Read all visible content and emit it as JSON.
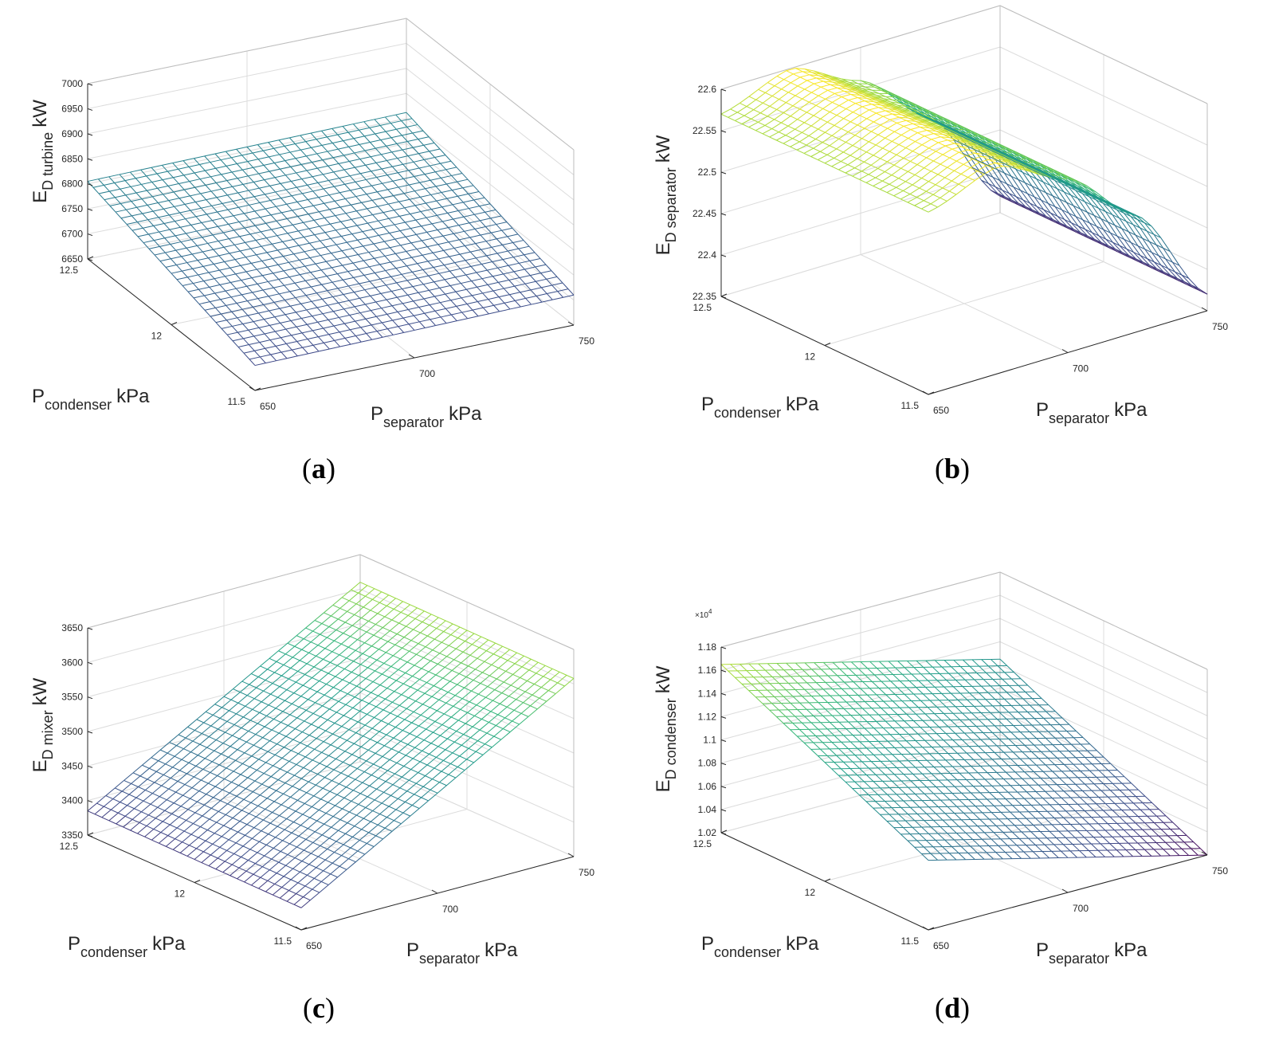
{
  "chart_data": [
    {
      "id": "a",
      "type": "surface",
      "caption": "a",
      "ylabel_main": "E",
      "ylabel_sub": "D turbine",
      "ylabel_unit": "kW",
      "x1label_main": "P",
      "x1label_sub": "condenser",
      "x1label_unit": "kPa",
      "x2label_main": "P",
      "x2label_sub": "separator",
      "x2label_unit": "kPa",
      "condenser_ticks": [
        "12.5",
        "12",
        "11.5"
      ],
      "separator_ticks": [
        "650",
        "700",
        "750"
      ],
      "z_ticks": [
        "6650",
        "6700",
        "6750",
        "6800",
        "6850",
        "6900",
        "6950",
        "7000"
      ],
      "z_multiplier": "",
      "condenser_range": [
        11.5,
        12.5
      ],
      "separator_range": [
        650,
        750
      ],
      "zlim": [
        6650,
        7000
      ],
      "surface_corners": {
        "cond_12.5_sep_650": 6805,
        "cond_12.5_sep_750": 6812,
        "cond_11.5_sep_650": 6700,
        "cond_11.5_sep_750": 6710
      }
    },
    {
      "id": "b",
      "type": "surface",
      "caption": "b",
      "ylabel_main": "E",
      "ylabel_sub": "D separator",
      "ylabel_unit": "kW",
      "x1label_main": "P",
      "x1label_sub": "condenser",
      "x1label_unit": "kPa",
      "x2label_main": "P",
      "x2label_sub": "separator",
      "x2label_unit": "kPa",
      "condenser_ticks": [
        "12.5",
        "12",
        "11.5"
      ],
      "separator_ticks": [
        "650",
        "700",
        "750"
      ],
      "z_ticks": [
        "22.35",
        "22.4",
        "22.45",
        "22.5",
        "22.55",
        "22.6"
      ],
      "z_multiplier": "",
      "condenser_range": [
        11.5,
        12.5
      ],
      "separator_range": [
        650,
        750
      ],
      "zlim": [
        22.35,
        22.6
      ],
      "surface_profile_vs_separator": {
        "separator": [
          650,
          675,
          700,
          725,
          750
        ],
        "value": [
          22.57,
          22.6,
          22.56,
          22.49,
          22.37
        ]
      }
    },
    {
      "id": "c",
      "type": "surface",
      "caption": "c",
      "ylabel_main": "E",
      "ylabel_sub": "D mixer",
      "ylabel_unit": "kW",
      "x1label_main": "P",
      "x1label_sub": "condenser",
      "x1label_unit": "kPa",
      "x2label_main": "P",
      "x2label_sub": "separator",
      "x2label_unit": "kPa",
      "condenser_ticks": [
        "12.5",
        "12",
        "11.5"
      ],
      "separator_ticks": [
        "650",
        "700",
        "750"
      ],
      "z_ticks": [
        "3350",
        "3400",
        "3450",
        "3500",
        "3550",
        "3600",
        "3650"
      ],
      "z_multiplier": "",
      "condenser_range": [
        11.5,
        12.5
      ],
      "separator_range": [
        650,
        750
      ],
      "zlim": [
        3350,
        3650
      ],
      "surface_corners": {
        "cond_12.5_sep_650": 3385,
        "cond_12.5_sep_750": 3610,
        "cond_11.5_sep_650": 3382,
        "cond_11.5_sep_750": 3608
      }
    },
    {
      "id": "d",
      "type": "surface",
      "caption": "d",
      "ylabel_main": "E",
      "ylabel_sub": "D condenser",
      "ylabel_unit": "kW",
      "x1label_main": "P",
      "x1label_sub": "condenser",
      "x1label_unit": "kPa",
      "x2label_main": "P",
      "x2label_sub": "separator",
      "x2label_unit": "kPa",
      "condenser_ticks": [
        "12.5",
        "12",
        "11.5"
      ],
      "separator_ticks": [
        "650",
        "700",
        "750"
      ],
      "z_ticks": [
        "1.02",
        "1.04",
        "1.06",
        "1.08",
        "1.1",
        "1.12",
        "1.14",
        "1.16",
        "1.18"
      ],
      "z_multiplier": "×10",
      "z_multiplier_exp": "4",
      "condenser_range": [
        11.5,
        12.5
      ],
      "separator_range": [
        650,
        750
      ],
      "zlim": [
        1.02,
        1.18
      ],
      "surface_corners": {
        "cond_12.5_sep_650": 1.165,
        "cond_12.5_sep_750": 1.105,
        "cond_11.5_sep_650": 1.08,
        "cond_11.5_sep_750": 1.02
      }
    }
  ]
}
